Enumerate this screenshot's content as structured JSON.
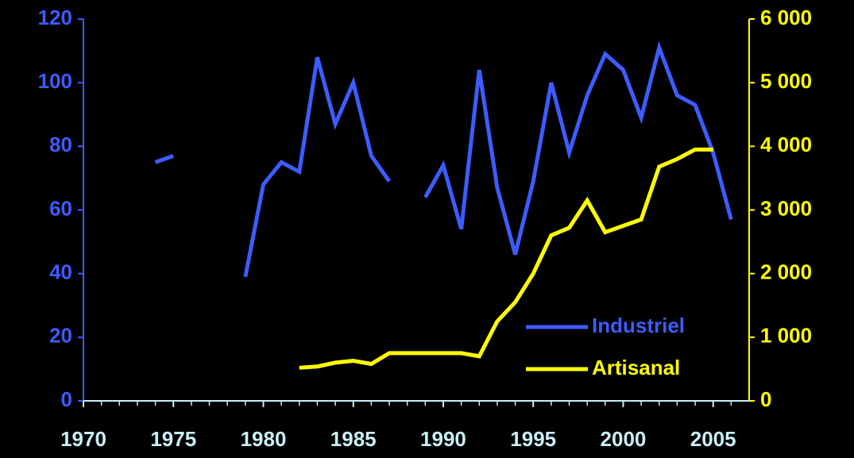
{
  "chart_data": {
    "type": "line",
    "x": [
      1970,
      1971,
      1972,
      1973,
      1974,
      1975,
      1976,
      1977,
      1978,
      1979,
      1980,
      1981,
      1982,
      1983,
      1984,
      1985,
      1986,
      1987,
      1988,
      1989,
      1990,
      1991,
      1992,
      1993,
      1994,
      1995,
      1996,
      1997,
      1998,
      1999,
      2000,
      2001,
      2002,
      2003,
      2004,
      2005,
      2006
    ],
    "series": [
      {
        "name": "Industriel",
        "color": "#3d5cff",
        "axis": "y",
        "values": [
          null,
          null,
          null,
          null,
          75,
          77,
          null,
          null,
          null,
          39,
          68,
          75,
          72,
          108,
          87,
          100,
          77,
          69,
          null,
          64,
          74,
          54,
          104,
          67,
          46,
          69,
          100,
          78,
          96,
          109,
          104,
          89,
          111,
          96,
          93,
          78,
          57
        ]
      },
      {
        "name": "Artisanal",
        "color": "#ffff00",
        "axis": "y2",
        "values": [
          null,
          null,
          null,
          null,
          null,
          null,
          null,
          null,
          null,
          null,
          null,
          null,
          520,
          540,
          600,
          630,
          580,
          750,
          750,
          750,
          750,
          750,
          700,
          1250,
          1550,
          2000,
          2600,
          2720,
          3150,
          2650,
          2750,
          2850,
          3680,
          3800,
          3950,
          3950,
          null
        ]
      }
    ],
    "xlim": [
      1970,
      2007
    ],
    "xticks": [
      1970,
      1975,
      1980,
      1985,
      1990,
      1995,
      2000,
      2005
    ],
    "ylim": [
      0,
      120
    ],
    "yticks": [
      0,
      20,
      40,
      60,
      80,
      100,
      120
    ],
    "y2lim": [
      0,
      6000
    ],
    "y2ticks": [
      0,
      {
        "value": 1000,
        "label": "1 000"
      },
      {
        "value": 2000,
        "label": "2 000"
      },
      {
        "value": 3000,
        "label": "3 000"
      },
      {
        "value": 4000,
        "label": "4 000"
      },
      {
        "value": 5000,
        "label": "5 000"
      },
      {
        "value": 6000,
        "label": "6 000"
      }
    ],
    "legend": "lower right",
    "axis_colors": {
      "y": "#3d5cff",
      "y2": "#ffff00",
      "x": "#c8f0f8"
    }
  }
}
